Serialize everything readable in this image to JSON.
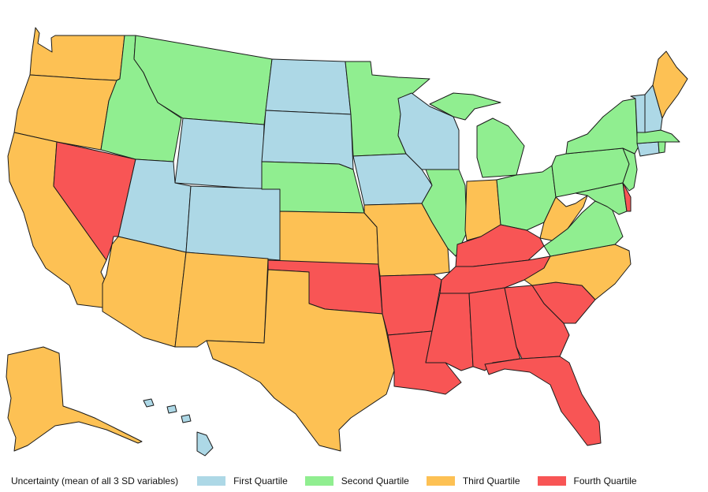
{
  "legend": {
    "title": "Uncertainty (mean of all 3 SD variables)",
    "items": [
      {
        "label": "First Quartile",
        "color": "#add8e6"
      },
      {
        "label": "Second Quartile",
        "color": "#90ee90"
      },
      {
        "label": "Third Quartile",
        "color": "#fdc154"
      },
      {
        "label": "Fourth Quartile",
        "color": "#f85555"
      }
    ]
  },
  "states": [
    {
      "name": "Washington",
      "quartile": 3
    },
    {
      "name": "Oregon",
      "quartile": 3
    },
    {
      "name": "California",
      "quartile": 3
    },
    {
      "name": "Nevada",
      "quartile": 4
    },
    {
      "name": "Idaho",
      "quartile": 2
    },
    {
      "name": "Montana",
      "quartile": 2
    },
    {
      "name": "Wyoming",
      "quartile": 1
    },
    {
      "name": "Utah",
      "quartile": 1
    },
    {
      "name": "Colorado",
      "quartile": 1
    },
    {
      "name": "Arizona",
      "quartile": 3
    },
    {
      "name": "New Mexico",
      "quartile": 3
    },
    {
      "name": "North Dakota",
      "quartile": 1
    },
    {
      "name": "South Dakota",
      "quartile": 1
    },
    {
      "name": "Nebraska",
      "quartile": 2
    },
    {
      "name": "Kansas",
      "quartile": 3
    },
    {
      "name": "Oklahoma",
      "quartile": 4
    },
    {
      "name": "Texas",
      "quartile": 3
    },
    {
      "name": "Minnesota",
      "quartile": 2
    },
    {
      "name": "Iowa",
      "quartile": 1
    },
    {
      "name": "Missouri",
      "quartile": 3
    },
    {
      "name": "Arkansas",
      "quartile": 4
    },
    {
      "name": "Louisiana",
      "quartile": 4
    },
    {
      "name": "Wisconsin",
      "quartile": 1
    },
    {
      "name": "Illinois",
      "quartile": 2
    },
    {
      "name": "Michigan",
      "quartile": 2
    },
    {
      "name": "Indiana",
      "quartile": 3
    },
    {
      "name": "Ohio",
      "quartile": 2
    },
    {
      "name": "Kentucky",
      "quartile": 4
    },
    {
      "name": "Tennessee",
      "quartile": 4
    },
    {
      "name": "Mississippi",
      "quartile": 4
    },
    {
      "name": "Alabama",
      "quartile": 4
    },
    {
      "name": "Georgia",
      "quartile": 4
    },
    {
      "name": "Florida",
      "quartile": 4
    },
    {
      "name": "South Carolina",
      "quartile": 4
    },
    {
      "name": "North Carolina",
      "quartile": 3
    },
    {
      "name": "Virginia",
      "quartile": 2
    },
    {
      "name": "West Virginia",
      "quartile": 3
    },
    {
      "name": "Maryland",
      "quartile": 2
    },
    {
      "name": "Delaware",
      "quartile": 4
    },
    {
      "name": "Pennsylvania",
      "quartile": 2
    },
    {
      "name": "New Jersey",
      "quartile": 2
    },
    {
      "name": "New York",
      "quartile": 2
    },
    {
      "name": "Connecticut",
      "quartile": 1
    },
    {
      "name": "Rhode Island",
      "quartile": 2
    },
    {
      "name": "Massachusetts",
      "quartile": 2
    },
    {
      "name": "Vermont",
      "quartile": 1
    },
    {
      "name": "New Hampshire",
      "quartile": 1
    },
    {
      "name": "Maine",
      "quartile": 3
    },
    {
      "name": "Alaska",
      "quartile": 3
    },
    {
      "name": "Hawaii",
      "quartile": 1
    }
  ]
}
